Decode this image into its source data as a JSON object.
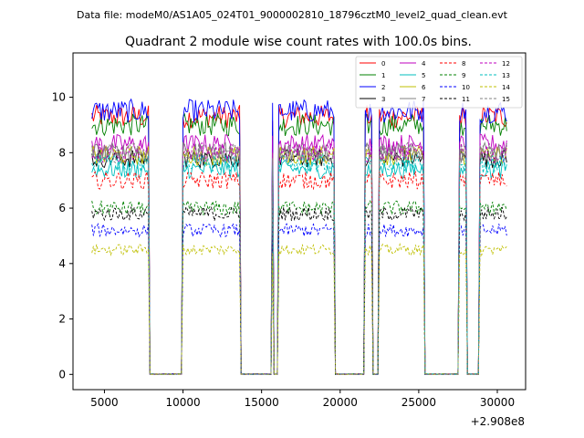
{
  "chart_data": {
    "type": "line",
    "suptitle": "Data file: modeM0/AS1A05_024T01_9000002810_18796cztM0_level2_quad_clean.evt",
    "title": "Quadrant 2 module wise count rates with 100.0s bins.",
    "xlabel": "",
    "ylabel": "",
    "x_offset_label": "+2.908e8",
    "xlim": [
      3000,
      31800
    ],
    "ylim": [
      -0.55,
      11.6
    ],
    "x_ticks": [
      5000,
      10000,
      15000,
      20000,
      25000,
      30000
    ],
    "x_tick_labels": [
      "5000",
      "10000",
      "15000",
      "20000",
      "25000",
      "30000"
    ],
    "y_ticks": [
      0,
      2,
      4,
      6,
      8,
      10
    ],
    "y_tick_labels": [
      "0",
      "2",
      "4",
      "6",
      "8",
      "10"
    ],
    "legend_location": "top-right",
    "bin_seconds": 100,
    "x_start": 4200,
    "x_end": 30600,
    "source_on_intervals": [
      [
        4200,
        7800
      ],
      [
        10000,
        13600
      ],
      [
        15650,
        15750
      ],
      [
        16100,
        19600
      ],
      [
        21600,
        22000
      ],
      [
        22500,
        25300
      ],
      [
        27600,
        28000
      ],
      [
        28900,
        30600
      ]
    ],
    "series": [
      {
        "name": "0",
        "color": "#ff0000",
        "dash": "solid",
        "level": 9.3
      },
      {
        "name": "1",
        "color": "#008000",
        "dash": "solid",
        "level": 9.0
      },
      {
        "name": "2",
        "color": "#0000ff",
        "dash": "solid",
        "level": 9.5
      },
      {
        "name": "3",
        "color": "#000000",
        "dash": "solid",
        "level": 7.8
      },
      {
        "name": "4",
        "color": "#bf00bf",
        "dash": "solid",
        "level": 8.3
      },
      {
        "name": "5",
        "color": "#00bfbf",
        "dash": "solid",
        "level": 7.4
      },
      {
        "name": "6",
        "color": "#bfbf00",
        "dash": "solid",
        "level": 7.9
      },
      {
        "name": "7",
        "color": "#808080",
        "dash": "solid",
        "level": 8.0
      },
      {
        "name": "8",
        "color": "#ff0000",
        "dash": "dashed",
        "level": 7.0
      },
      {
        "name": "9",
        "color": "#008000",
        "dash": "dashed",
        "level": 6.0
      },
      {
        "name": "10",
        "color": "#0000ff",
        "dash": "dashed",
        "level": 5.2
      },
      {
        "name": "11",
        "color": "#000000",
        "dash": "dashed",
        "level": 5.8
      },
      {
        "name": "12",
        "color": "#bf00bf",
        "dash": "dashed",
        "level": 8.0
      },
      {
        "name": "13",
        "color": "#00bfbf",
        "dash": "dashed",
        "level": 7.6
      },
      {
        "name": "14",
        "color": "#bfbf00",
        "dash": "dashed",
        "level": 4.5
      },
      {
        "name": "15",
        "color": "#808080",
        "dash": "dashed",
        "level": 8.0
      }
    ]
  }
}
